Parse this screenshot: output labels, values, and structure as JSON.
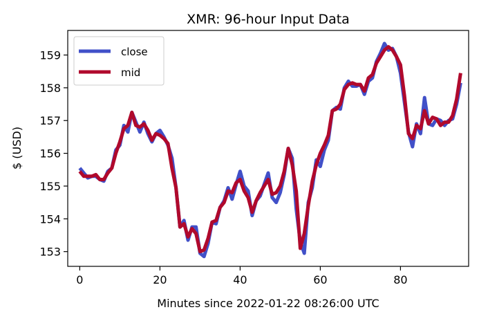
{
  "chart_data": {
    "type": "line",
    "title": "XMR: 96-hour Input Data",
    "xlabel": "Minutes since 2022-01-22 08:26:00 UTC",
    "ylabel": "$ (USD)",
    "xlim": [
      -3,
      97
    ],
    "ylim": [
      152.55,
      159.75
    ],
    "xticks": [
      0,
      20,
      40,
      60,
      80
    ],
    "yticks": [
      153,
      154,
      155,
      156,
      157,
      158,
      159
    ],
    "grid": false,
    "legend_position": "upper-left",
    "series": [
      {
        "name": "close",
        "color": "#4150c8",
        "x": [
          0,
          1,
          2,
          3,
          4,
          5,
          6,
          7,
          8,
          9,
          10,
          11,
          12,
          13,
          14,
          15,
          16,
          17,
          18,
          19,
          20,
          21,
          22,
          23,
          24,
          25,
          26,
          27,
          28,
          29,
          30,
          31,
          32,
          33,
          34,
          35,
          36,
          37,
          38,
          39,
          40,
          41,
          42,
          43,
          44,
          45,
          46,
          47,
          48,
          49,
          50,
          51,
          52,
          53,
          54,
          55,
          56,
          57,
          58,
          59,
          60,
          61,
          62,
          63,
          64,
          65,
          66,
          67,
          68,
          69,
          70,
          71,
          72,
          73,
          74,
          75,
          76,
          77,
          78,
          79,
          80,
          81,
          82,
          83,
          84,
          85,
          86,
          87,
          88,
          89,
          90,
          91,
          92,
          93,
          94,
          95
        ],
        "values": [
          155.55,
          155.4,
          155.25,
          155.3,
          155.3,
          155.2,
          155.15,
          155.45,
          155.55,
          156.1,
          156.25,
          156.85,
          156.65,
          157.25,
          156.95,
          156.65,
          156.95,
          156.6,
          156.35,
          156.6,
          156.7,
          156.5,
          156.25,
          155.85,
          154.95,
          153.75,
          153.95,
          153.35,
          153.75,
          153.75,
          152.95,
          152.85,
          153.25,
          153.9,
          153.85,
          154.35,
          154.55,
          154.95,
          154.6,
          155.05,
          155.45,
          155.0,
          154.85,
          154.1,
          154.55,
          154.7,
          155.05,
          155.4,
          154.65,
          154.5,
          154.8,
          155.35,
          156.15,
          155.85,
          154.3,
          153.3,
          152.95,
          154.5,
          154.95,
          155.8,
          155.6,
          156.1,
          156.4,
          157.3,
          157.4,
          157.35,
          158.0,
          158.2,
          158.05,
          158.05,
          158.1,
          157.8,
          158.2,
          158.3,
          158.8,
          159.05,
          159.35,
          159.15,
          159.2,
          158.95,
          158.45,
          157.55,
          156.65,
          156.2,
          156.9,
          156.6,
          157.7,
          156.9,
          156.85,
          157.05,
          157.0,
          156.85,
          157.0,
          157.05,
          157.5,
          158.15
        ]
      },
      {
        "name": "mid",
        "color": "#b0092c",
        "x": [
          0,
          1,
          2,
          3,
          4,
          5,
          6,
          7,
          8,
          9,
          10,
          11,
          12,
          13,
          14,
          15,
          16,
          17,
          18,
          19,
          20,
          21,
          22,
          23,
          24,
          25,
          26,
          27,
          28,
          29,
          30,
          31,
          32,
          33,
          34,
          35,
          36,
          37,
          38,
          39,
          40,
          41,
          42,
          43,
          44,
          45,
          46,
          47,
          48,
          49,
          50,
          51,
          52,
          53,
          54,
          55,
          56,
          57,
          58,
          59,
          60,
          61,
          62,
          63,
          64,
          65,
          66,
          67,
          68,
          69,
          70,
          71,
          72,
          73,
          74,
          75,
          76,
          77,
          78,
          79,
          80,
          81,
          82,
          83,
          84,
          85,
          86,
          87,
          88,
          89,
          90,
          91,
          92,
          93,
          94,
          95
        ],
        "values": [
          155.45,
          155.3,
          155.3,
          155.3,
          155.35,
          155.2,
          155.2,
          155.4,
          155.55,
          156.0,
          156.35,
          156.75,
          156.85,
          157.25,
          156.85,
          156.8,
          156.9,
          156.7,
          156.4,
          156.6,
          156.55,
          156.45,
          156.3,
          155.55,
          154.95,
          153.75,
          153.85,
          153.45,
          153.7,
          153.55,
          153.0,
          153.05,
          153.4,
          153.9,
          153.95,
          154.35,
          154.5,
          154.85,
          154.8,
          155.1,
          155.2,
          154.85,
          154.65,
          154.2,
          154.55,
          154.8,
          155.0,
          155.2,
          154.75,
          154.8,
          155.0,
          155.45,
          156.15,
          155.65,
          154.85,
          153.1,
          153.55,
          154.4,
          155.15,
          155.65,
          156.0,
          156.25,
          156.55,
          157.3,
          157.35,
          157.5,
          157.95,
          158.1,
          158.15,
          158.1,
          158.1,
          157.9,
          158.3,
          158.4,
          158.75,
          158.95,
          159.15,
          159.25,
          159.15,
          158.95,
          158.7,
          157.75,
          156.6,
          156.45,
          156.85,
          156.75,
          157.3,
          156.9,
          157.1,
          157.05,
          156.85,
          156.95,
          156.95,
          157.15,
          157.65,
          158.45
        ]
      }
    ]
  }
}
